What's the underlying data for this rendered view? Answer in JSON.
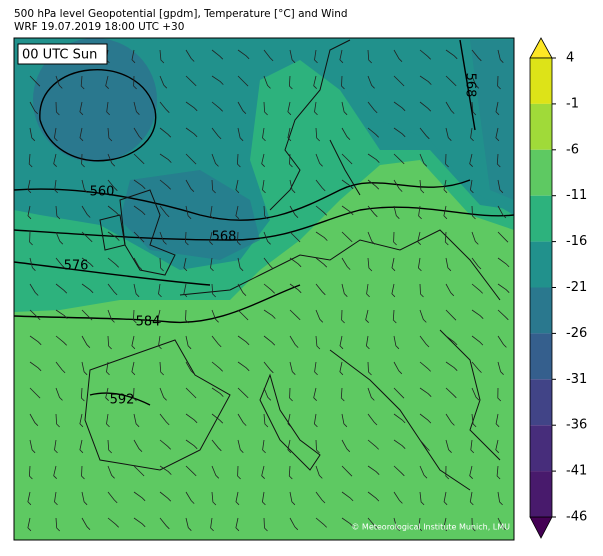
{
  "header": {
    "title": "500 hPa level Geopotential [gpdm], Temperature [°C] and Wind",
    "subtitle": "WRF 19.07.2019 18:00 UTC +30"
  },
  "map": {
    "time_label": "00 UTC Sun",
    "contour_labels": [
      "560",
      "568",
      "576",
      "584",
      "592",
      "568"
    ],
    "credit": "© Meteorological Institute Munich, LMU"
  },
  "colorbar": {
    "ticks": [
      4,
      -1,
      -6,
      -11,
      -16,
      -21,
      -26,
      -31,
      -36,
      -41,
      -46
    ],
    "colors": [
      "#dde318",
      "#a0da39",
      "#5ec962",
      "#2db27d",
      "#21918c",
      "#2a788e",
      "#355f8d",
      "#414487",
      "#472d7b",
      "#481a6c"
    ],
    "over_color": "#fde725",
    "under_color": "#440154"
  }
}
